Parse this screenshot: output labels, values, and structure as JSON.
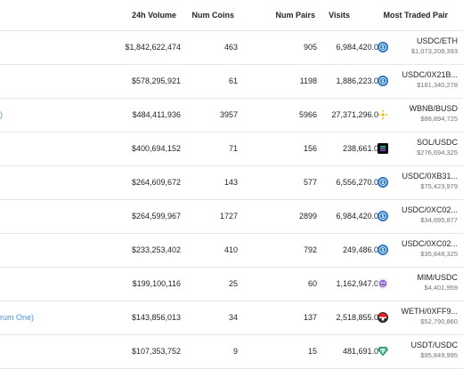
{
  "headers": {
    "volume": "24h Volume",
    "coins": "Num Coins",
    "pairs": "Num Pairs",
    "visits": "Visits",
    "most_traded": "Most Traded Pair"
  },
  "rows": [
    {
      "name": "",
      "volume": "$1,842,622,474",
      "coins": "463",
      "pairs": "905",
      "visits": "6,984,420.0",
      "pair": "USDC/ETH",
      "pair_volume": "$1,073,208,393",
      "icon": "usdc-icon"
    },
    {
      "name": "",
      "volume": "$578,295,921",
      "coins": "61",
      "pairs": "1198",
      "visits": "1,886,223.0",
      "pair": "USDC/0X21B...",
      "pair_volume": "$181,340,278",
      "icon": "usdc-icon"
    },
    {
      "name": ")",
      "volume": "$484,411,936",
      "coins": "3957",
      "pairs": "5966",
      "visits": "27,371,296.0",
      "pair": "WBNB/BUSD",
      "pair_volume": "$88,894,725",
      "icon": "bnb-icon"
    },
    {
      "name": "",
      "volume": "$400,694,152",
      "coins": "71",
      "pairs": "156",
      "visits": "238,661.0",
      "pair": "SOL/USDC",
      "pair_volume": "$276,694,325",
      "icon": "solana-icon"
    },
    {
      "name": "",
      "volume": "$264,609,672",
      "coins": "143",
      "pairs": "577",
      "visits": "6,556,270.0",
      "pair": "USDC/0XB31...",
      "pair_volume": "$75,423,979",
      "icon": "usdc-icon"
    },
    {
      "name": "",
      "volume": "$264,599,967",
      "coins": "1727",
      "pairs": "2899",
      "visits": "6,984,420.0",
      "pair": "USDC/0XC02...",
      "pair_volume": "$34,695,877",
      "icon": "usdc-icon"
    },
    {
      "name": "",
      "volume": "$233,253,402",
      "coins": "410",
      "pairs": "792",
      "visits": "249,486.0",
      "pair": "USDC/0XC02...",
      "pair_volume": "$35,848,325",
      "icon": "usdc-icon"
    },
    {
      "name": "",
      "volume": "$199,100,116",
      "coins": "25",
      "pairs": "60",
      "visits": "1,162,947.0",
      "pair": "MIM/USDC",
      "pair_volume": "$4,401,959",
      "icon": "mim-icon"
    },
    {
      "name": "rum One)",
      "volume": "$143,856,013",
      "coins": "34",
      "pairs": "137",
      "visits": "2,518,855.0",
      "pair": "WETH/0XFF9...",
      "pair_volume": "$52,790,860",
      "icon": "weth-icon"
    },
    {
      "name": "",
      "volume": "$107,353,752",
      "coins": "9",
      "pairs": "15",
      "visits": "481,691.0",
      "pair": "USDT/USDC",
      "pair_volume": "$95,849,995",
      "icon": "tether-icon"
    }
  ],
  "colors": {
    "link": "#4a8fd6",
    "usdc": "#2775ca",
    "bnb": "#f3ba2f",
    "tether": "#26a17b",
    "border": "#e3e6ea"
  }
}
